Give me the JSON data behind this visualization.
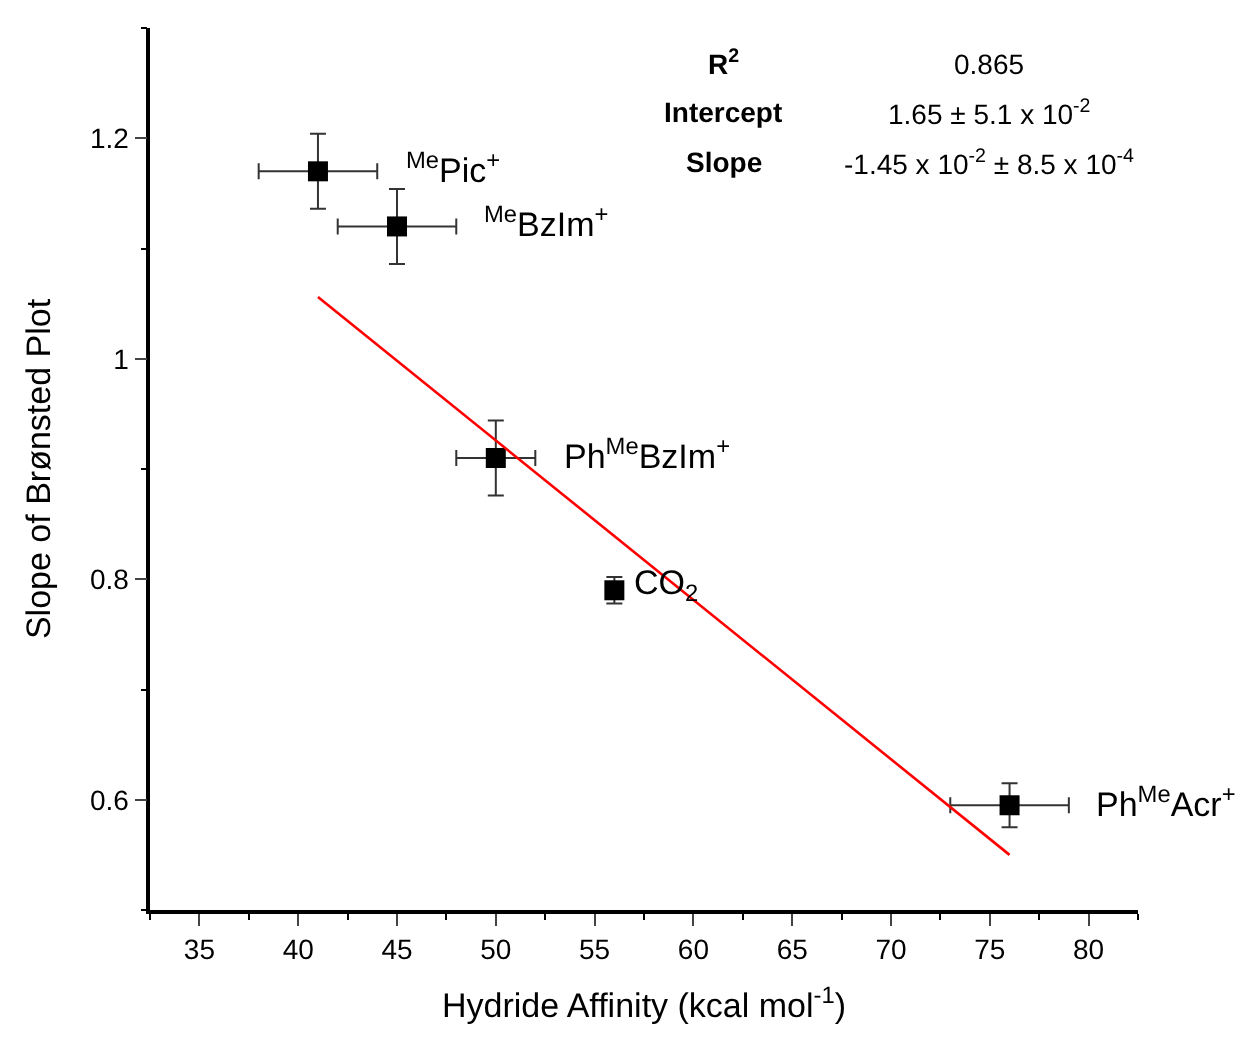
{
  "chart_data": {
    "type": "scatter",
    "xlabel": "Hydride Affinity (kcal mol$^{-1}$)",
    "ylabel": "Slope of Brønsted Plot",
    "x": [
      41,
      45,
      50,
      56,
      76
    ],
    "series": [
      {
        "type": "scatter",
        "color": "#000000",
        "marker": "square",
        "values": [
          1.17,
          1.12,
          0.91,
          0.79,
          0.595
        ],
        "errors": [
          0.034,
          0.034,
          0.034,
          0.012,
          0.02
        ],
        "xerrors": [
          3,
          3,
          2,
          null,
          3
        ]
      },
      {
        "type": "line",
        "color": "#ff0000",
        "marker": "none",
        "line_style": "solid",
        "x": [
          41,
          76
        ],
        "values": [
          1.056,
          0.55
        ]
      }
    ],
    "xlim": [
      32.5,
      82.5
    ],
    "xticks": [
      35,
      40,
      45,
      50,
      55,
      60,
      65,
      70,
      75,
      80
    ],
    "ylim": [
      0.5,
      1.3
    ],
    "yticks": [
      0.6,
      0.8,
      1,
      1.2
    ],
    "grid": false,
    "legend": false,
    "annotations": [
      {
        "text": "$^{Me}$Pic$^{+}$",
        "x": 41,
        "y": 1.17
      },
      {
        "text": "$^{Me}$BzIm$^{+}$",
        "x": 45,
        "y": 1.12
      },
      {
        "text": "Ph$^{Me}$BzIm$^{+}$",
        "x": 50,
        "y": 0.91
      },
      {
        "text": "CO$_{2}$",
        "x": 56,
        "y": 0.79
      },
      {
        "text": "Ph$^{Me}$Acr$^{+}$",
        "x": 76,
        "y": 0.595
      },
      "R$^{2}$",
      "0.865",
      "Intercept",
      "1.65 ± 5.1 x 10$^{-2}$",
      "Slope",
      "-1.45 x 10$^{-2}$ ± 8.5 x 10$^{-4}$"
    ]
  }
}
